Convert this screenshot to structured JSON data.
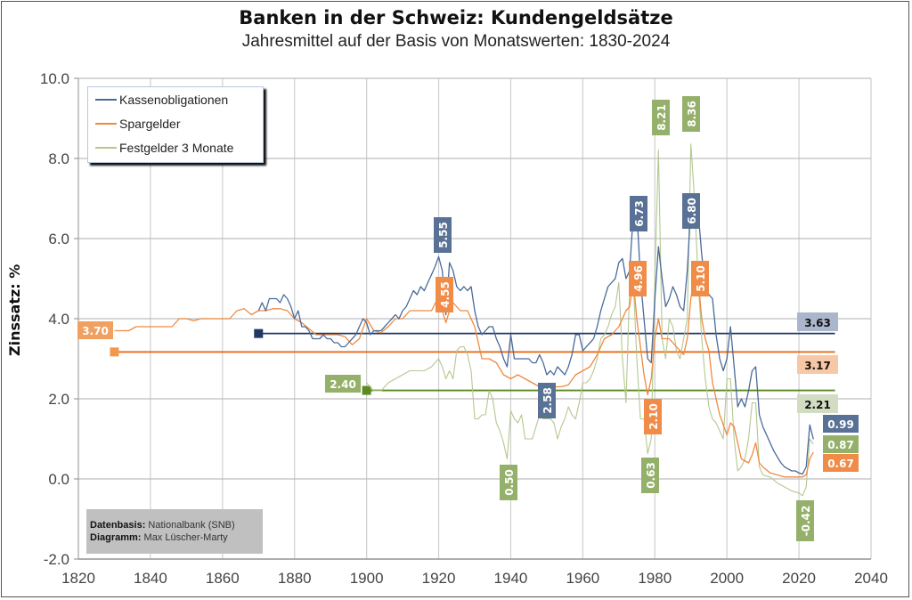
{
  "title": "Banken in der Schweiz: Kundengeldsätze",
  "subtitle": "Jahresmittel auf der Basis von Monatswerten: 1830-2024",
  "source": {
    "data_label": "Datenbasis:",
    "data_value": "Nationalbank (SNB)",
    "chart_label": "Diagramm:",
    "chart_value": "Max Lüscher-Marty"
  },
  "chart_data": {
    "type": "line",
    "title": "Banken in der Schweiz: Kundengeldsätze",
    "subtitle": "Jahresmittel auf der Basis von Monatswerten: 1830-2024",
    "xlabel": "",
    "ylabel": "Zinssatz: %",
    "xlim": [
      1820,
      2040
    ],
    "ylim": [
      -2.0,
      10.0
    ],
    "xticks": [
      "1820",
      "1840",
      "1860",
      "1880",
      "1900",
      "1920",
      "1940",
      "1960",
      "1980",
      "2000",
      "2020",
      "2040"
    ],
    "yticks": [
      "-2.0",
      "0.0",
      "2.0",
      "4.0",
      "6.0",
      "8.0",
      "10.0"
    ],
    "grid": true,
    "legend_position": "top-left",
    "colors": {
      "kasse": "#4a6a9a",
      "spar": "#f08a40",
      "fest": "#b4c890",
      "kasse_avg": "#1f3864",
      "spar_avg": "#e8600a",
      "fest_avg": "#5a8a20"
    },
    "series": [
      {
        "name": "Kassenobligationen",
        "key": "kasse",
        "x": [
          1870,
          1871,
          1872,
          1873,
          1874,
          1875,
          1876,
          1877,
          1878,
          1879,
          1880,
          1881,
          1882,
          1883,
          1884,
          1885,
          1886,
          1887,
          1888,
          1889,
          1890,
          1891,
          1892,
          1893,
          1894,
          1895,
          1896,
          1897,
          1898,
          1899,
          1900,
          1901,
          1902,
          1903,
          1904,
          1905,
          1906,
          1907,
          1908,
          1909,
          1910,
          1911,
          1912,
          1913,
          1914,
          1915,
          1916,
          1917,
          1918,
          1919,
          1920,
          1921,
          1922,
          1923,
          1924,
          1925,
          1926,
          1927,
          1928,
          1929,
          1930,
          1931,
          1932,
          1933,
          1934,
          1935,
          1936,
          1937,
          1938,
          1939,
          1940,
          1941,
          1942,
          1943,
          1944,
          1945,
          1946,
          1947,
          1948,
          1949,
          1950,
          1951,
          1952,
          1953,
          1954,
          1955,
          1956,
          1957,
          1958,
          1959,
          1960,
          1961,
          1962,
          1963,
          1964,
          1965,
          1966,
          1967,
          1968,
          1969,
          1970,
          1971,
          1972,
          1973,
          1974,
          1975,
          1976,
          1977,
          1978,
          1979,
          1980,
          1981,
          1982,
          1983,
          1984,
          1985,
          1986,
          1987,
          1988,
          1989,
          1990,
          1991,
          1992,
          1993,
          1994,
          1995,
          1996,
          1997,
          1998,
          1999,
          2000,
          2001,
          2002,
          2003,
          2004,
          2005,
          2006,
          2007,
          2008,
          2009,
          2010,
          2011,
          2012,
          2013,
          2014,
          2015,
          2016,
          2017,
          2018,
          2019,
          2020,
          2021,
          2022,
          2023,
          2024
        ],
        "y": [
          4.2,
          4.4,
          4.2,
          4.5,
          4.5,
          4.5,
          4.4,
          4.6,
          4.5,
          4.3,
          4.0,
          4.2,
          3.8,
          3.8,
          3.7,
          3.5,
          3.5,
          3.5,
          3.6,
          3.5,
          3.5,
          3.4,
          3.4,
          3.3,
          3.3,
          3.4,
          3.5,
          3.6,
          3.8,
          4.0,
          3.9,
          3.6,
          3.7,
          3.7,
          3.7,
          3.8,
          3.9,
          4.0,
          4.1,
          4.0,
          4.2,
          4.3,
          4.5,
          4.7,
          4.6,
          4.8,
          4.7,
          4.9,
          5.1,
          5.3,
          5.55,
          5.2,
          4.1,
          5.4,
          5.2,
          4.8,
          4.7,
          4.8,
          4.7,
          4.8,
          4.2,
          3.8,
          3.6,
          3.7,
          3.8,
          3.8,
          3.5,
          3.3,
          3.0,
          2.8,
          3.6,
          3.0,
          3.0,
          3.0,
          3.0,
          3.0,
          2.9,
          2.9,
          3.1,
          2.9,
          2.6,
          2.7,
          2.6,
          2.8,
          2.7,
          2.6,
          2.8,
          3.1,
          3.6,
          3.6,
          3.2,
          3.3,
          3.4,
          3.5,
          3.8,
          4.2,
          4.5,
          4.8,
          4.9,
          5.0,
          5.4,
          5.5,
          5.0,
          5.2,
          6.6,
          6.73,
          5.0,
          4.0,
          3.0,
          2.9,
          4.5,
          5.8,
          5.0,
          4.3,
          4.5,
          4.8,
          4.6,
          4.3,
          4.2,
          5.2,
          6.8,
          6.75,
          6.7,
          5.6,
          4.8,
          4.6,
          4.5,
          3.6,
          3.0,
          2.7,
          3.0,
          3.8,
          2.8,
          1.8,
          2.0,
          1.8,
          2.2,
          2.7,
          2.8,
          1.6,
          1.3,
          1.1,
          0.9,
          0.7,
          0.55,
          0.4,
          0.3,
          0.25,
          0.2,
          0.2,
          0.15,
          0.12,
          0.3,
          1.35,
          0.99
        ]
      },
      {
        "name": "Spargelder",
        "key": "spar",
        "x": [
          1830,
          1832,
          1834,
          1836,
          1838,
          1840,
          1842,
          1844,
          1846,
          1848,
          1850,
          1852,
          1854,
          1856,
          1858,
          1860,
          1862,
          1864,
          1866,
          1868,
          1870,
          1872,
          1874,
          1876,
          1878,
          1880,
          1882,
          1884,
          1886,
          1888,
          1890,
          1892,
          1894,
          1896,
          1898,
          1900,
          1902,
          1904,
          1906,
          1908,
          1910,
          1912,
          1914,
          1916,
          1918,
          1920,
          1921,
          1922,
          1923,
          1924,
          1926,
          1928,
          1930,
          1932,
          1934,
          1936,
          1938,
          1940,
          1942,
          1944,
          1946,
          1948,
          1950,
          1952,
          1954,
          1956,
          1958,
          1960,
          1962,
          1964,
          1966,
          1968,
          1970,
          1972,
          1973,
          1974,
          1975,
          1976,
          1977,
          1978,
          1979,
          1980,
          1981,
          1982,
          1983,
          1984,
          1986,
          1988,
          1989,
          1990,
          1991,
          1992,
          1993,
          1994,
          1995,
          1996,
          1998,
          2000,
          2001,
          2002,
          2003,
          2004,
          2006,
          2007,
          2008,
          2009,
          2010,
          2012,
          2014,
          2016,
          2018,
          2020,
          2021,
          2022,
          2023,
          2024
        ],
        "y": [
          3.7,
          3.7,
          3.7,
          3.8,
          3.8,
          3.8,
          3.8,
          3.8,
          3.8,
          4.0,
          4.0,
          3.95,
          4.0,
          4.0,
          4.0,
          4.0,
          4.0,
          4.2,
          4.25,
          4.1,
          4.2,
          4.2,
          4.25,
          4.25,
          4.2,
          4.0,
          3.9,
          3.75,
          3.6,
          3.6,
          3.6,
          3.6,
          3.55,
          3.35,
          3.5,
          4.0,
          3.7,
          3.65,
          3.8,
          4.0,
          4.0,
          4.2,
          4.2,
          4.2,
          4.2,
          4.55,
          4.2,
          3.9,
          4.2,
          4.4,
          4.2,
          4.2,
          3.8,
          3.0,
          3.0,
          2.9,
          2.6,
          2.5,
          2.6,
          2.5,
          2.4,
          2.3,
          2.3,
          2.3,
          2.3,
          2.35,
          2.6,
          2.7,
          2.8,
          3.1,
          3.5,
          3.6,
          3.8,
          4.2,
          4.3,
          4.96,
          4.0,
          3.3,
          2.6,
          2.1,
          2.5,
          3.5,
          4.0,
          3.5,
          3.5,
          3.5,
          3.3,
          3.1,
          3.5,
          4.5,
          5.1,
          5.0,
          4.0,
          3.5,
          3.2,
          2.4,
          1.6,
          1.1,
          1.4,
          1.3,
          0.9,
          0.5,
          0.4,
          0.6,
          0.9,
          0.4,
          0.3,
          0.15,
          0.1,
          0.05,
          0.05,
          0.05,
          0.05,
          0.1,
          0.5,
          0.67
        ]
      },
      {
        "name": "Festgelder 3 Monate",
        "key": "fest",
        "x": [
          1900,
          1902,
          1904,
          1906,
          1908,
          1910,
          1912,
          1914,
          1916,
          1918,
          1920,
          1921,
          1922,
          1923,
          1924,
          1925,
          1926,
          1927,
          1928,
          1929,
          1930,
          1931,
          1932,
          1933,
          1934,
          1935,
          1936,
          1937,
          1938,
          1939,
          1940,
          1941,
          1942,
          1943,
          1944,
          1945,
          1946,
          1947,
          1948,
          1949,
          1950,
          1951,
          1952,
          1953,
          1954,
          1955,
          1956,
          1957,
          1958,
          1959,
          1960,
          1961,
          1962,
          1963,
          1964,
          1965,
          1966,
          1967,
          1968,
          1969,
          1970,
          1971,
          1972,
          1973,
          1974,
          1975,
          1976,
          1977,
          1978,
          1979,
          1980,
          1981,
          1982,
          1983,
          1984,
          1985,
          1986,
          1987,
          1988,
          1989,
          1990,
          1991,
          1992,
          1993,
          1994,
          1995,
          1996,
          1997,
          1998,
          1999,
          2000,
          2001,
          2002,
          2003,
          2004,
          2005,
          2006,
          2007,
          2008,
          2009,
          2010,
          2012,
          2014,
          2016,
          2018,
          2020,
          2021,
          2022,
          2023,
          2024
        ],
        "y": [
          2.4,
          2.2,
          2.2,
          2.4,
          2.5,
          2.6,
          2.7,
          2.7,
          2.7,
          2.8,
          3.0,
          2.8,
          2.5,
          2.7,
          2.5,
          3.2,
          3.3,
          3.3,
          3.1,
          2.7,
          1.5,
          1.5,
          1.6,
          1.6,
          2.2,
          2.0,
          1.4,
          1.2,
          0.9,
          0.5,
          1.7,
          1.5,
          1.4,
          1.6,
          1.0,
          1.0,
          1.0,
          1.3,
          1.6,
          1.5,
          1.5,
          1.5,
          1.4,
          1.0,
          1.3,
          1.5,
          1.8,
          1.6,
          1.5,
          1.9,
          2.4,
          2.4,
          2.5,
          2.7,
          3.0,
          3.5,
          3.6,
          3.8,
          4.1,
          4.3,
          4.9,
          3.0,
          1.9,
          4.8,
          5.0,
          3.0,
          1.5,
          1.5,
          0.63,
          1.0,
          5.0,
          8.21,
          3.5,
          3.0,
          4.0,
          3.8,
          3.2,
          3.0,
          3.5,
          4.0,
          8.36,
          7.0,
          5.0,
          3.5,
          2.5,
          1.8,
          1.5,
          1.4,
          1.2,
          1.0,
          2.5,
          2.5,
          1.0,
          0.2,
          0.3,
          0.5,
          1.0,
          1.9,
          1.9,
          0.3,
          0.1,
          0.05,
          -0.1,
          -0.2,
          -0.3,
          -0.35,
          -0.42,
          -0.2,
          1.0,
          0.87
        ]
      }
    ],
    "averages": [
      {
        "series": "Kassenobligationen",
        "key": "kasse_avg",
        "start_year": 1870,
        "end_year": 2030,
        "value": 3.63,
        "label": "3.63"
      },
      {
        "series": "Spargelder",
        "key": "spar_avg",
        "start_year": 1830,
        "end_year": 2030,
        "value": 3.17,
        "label": "3.17"
      },
      {
        "series": "Festgelder 3 Monate",
        "key": "fest_avg",
        "start_year": 1900,
        "end_year": 2030,
        "value": 2.21,
        "label": "2.21"
      }
    ],
    "annotations": [
      {
        "text": "3.70",
        "series": "spar",
        "year": 1830,
        "value": 3.7,
        "orient": "h"
      },
      {
        "text": "2.40",
        "series": "fest",
        "year": 1900,
        "value": 2.4,
        "orient": "h"
      },
      {
        "text": "5.55",
        "series": "kasse",
        "year": 1920,
        "value": 5.55,
        "orient": "v"
      },
      {
        "text": "4.55",
        "series": "spar",
        "year": 1921,
        "value": 4.55,
        "orient": "v"
      },
      {
        "text": "2.58",
        "series": "kasse",
        "year": 1950,
        "value": 2.58,
        "orient": "v"
      },
      {
        "text": "0.50",
        "series": "fest",
        "year": 1939,
        "value": 0.5,
        "orient": "v"
      },
      {
        "text": "6.73",
        "series": "kasse",
        "year": 1974,
        "value": 6.73,
        "orient": "v"
      },
      {
        "text": "4.96",
        "series": "spar",
        "year": 1974,
        "value": 4.96,
        "orient": "v"
      },
      {
        "text": "2.10",
        "series": "spar",
        "year": 1978,
        "value": 2.1,
        "orient": "v"
      },
      {
        "text": "0.63",
        "series": "fest",
        "year": 1977,
        "value": 0.63,
        "orient": "v"
      },
      {
        "text": "8.21",
        "series": "fest",
        "year": 1981,
        "value": 8.21,
        "orient": "v"
      },
      {
        "text": "8.36",
        "series": "fest",
        "year": 1990,
        "value": 8.36,
        "orient": "v"
      },
      {
        "text": "6.80",
        "series": "kasse",
        "year": 1990,
        "value": 6.8,
        "orient": "v"
      },
      {
        "text": "5.10",
        "series": "spar",
        "year": 1991,
        "value": 5.1,
        "orient": "v"
      },
      {
        "text": "-0.42",
        "series": "fest",
        "year": 2021,
        "value": -0.42,
        "orient": "v"
      },
      {
        "text": "0.99",
        "series": "kasse",
        "year": 2024,
        "value": 0.99,
        "orient": "h"
      },
      {
        "text": "0.87",
        "series": "fest",
        "year": 2024,
        "value": 0.87,
        "orient": "h"
      },
      {
        "text": "0.67",
        "series": "spar",
        "year": 2024,
        "value": 0.67,
        "orient": "h"
      }
    ]
  }
}
